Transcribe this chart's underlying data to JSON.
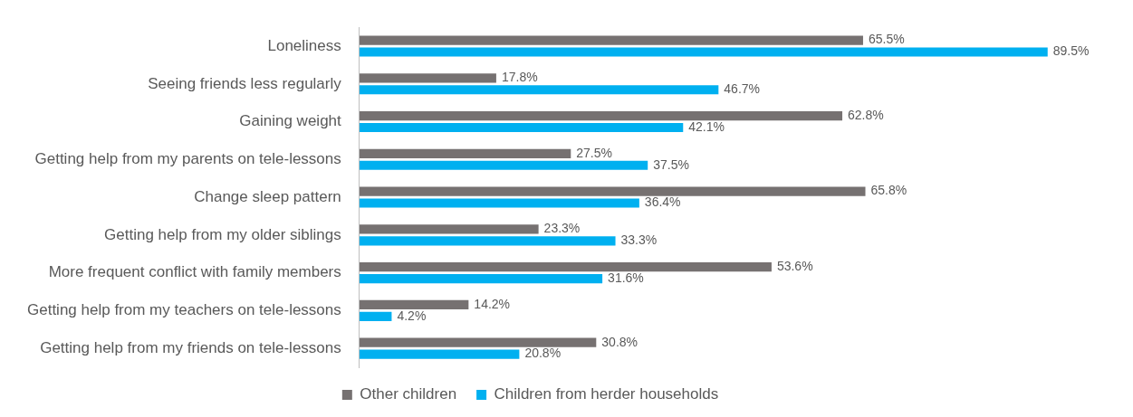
{
  "chart_data": {
    "type": "bar",
    "orientation": "horizontal",
    "categories": [
      "Loneliness",
      "Seeing friends less regularly",
      "Gaining weight",
      "Getting help from my parents on tele-lessons",
      "Change sleep pattern",
      "Getting help from my older siblings",
      "More frequent conflict with family members",
      "Getting help from my teachers on tele-lessons",
      "Getting help from my friends on tele-lessons"
    ],
    "series": [
      {
        "name": "Other children",
        "color": "#767171",
        "values": [
          65.5,
          17.8,
          62.8,
          27.5,
          65.8,
          23.3,
          53.6,
          14.2,
          30.8
        ],
        "value_labels": [
          "65.5%",
          "17.8%",
          "62.8%",
          "27.5%",
          "65.8%",
          "23.3%",
          "53.6%",
          "14.2%",
          "30.8%"
        ]
      },
      {
        "name": "Children from herder households",
        "color": "#00b0f0",
        "values": [
          89.5,
          46.7,
          42.1,
          37.5,
          36.4,
          33.3,
          31.6,
          4.2,
          20.8
        ],
        "value_labels": [
          "89.5%",
          "46.7%",
          "42.1%",
          "37.5%",
          "36.4%",
          "33.3%",
          "31.6%",
          "4.2%",
          "20.8%"
        ]
      }
    ],
    "tick_labels": "y",
    "grid": false,
    "legend": "bottom"
  }
}
